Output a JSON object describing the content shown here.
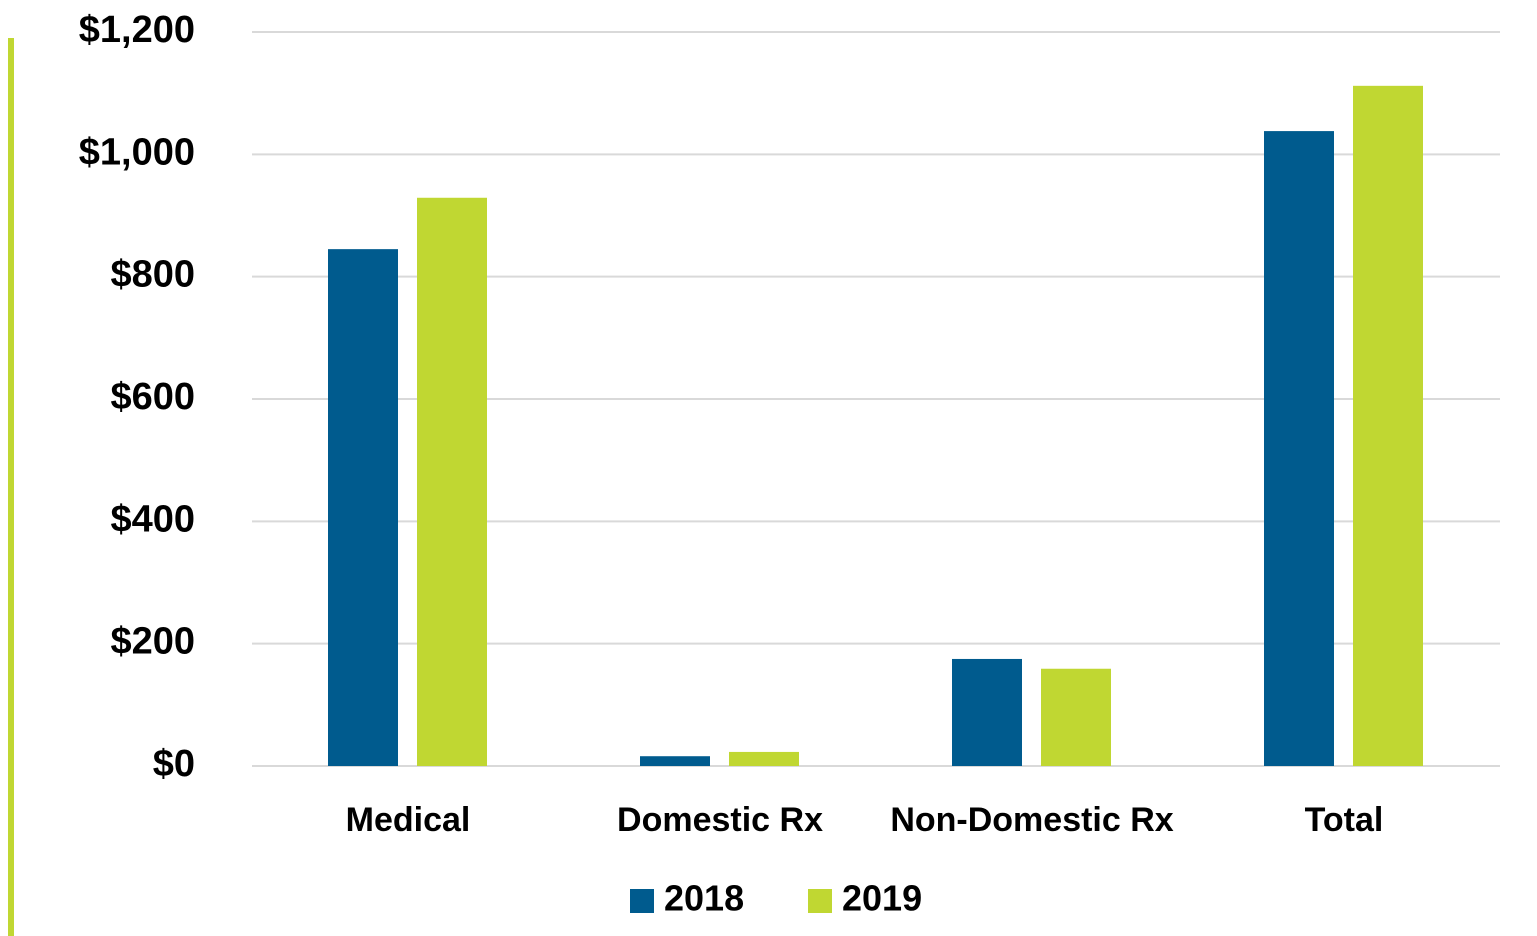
{
  "chart_data": {
    "type": "bar",
    "categories": [
      "Medical",
      "Domestic Rx",
      "Non-Domestic Rx",
      "Total"
    ],
    "series": [
      {
        "name": "2018",
        "color": "#005b8e",
        "values": [
          845,
          16,
          175,
          1038
        ]
      },
      {
        "name": "2019",
        "color": "#c0d732",
        "values": [
          929,
          23,
          159,
          1112
        ]
      }
    ],
    "ylim": [
      0,
      1200
    ],
    "yticks": [
      {
        "value": 0,
        "label": "$0"
      },
      {
        "value": 200,
        "label": "$200"
      },
      {
        "value": 400,
        "label": "$400"
      },
      {
        "value": 600,
        "label": "$600"
      },
      {
        "value": 800,
        "label": "$800"
      },
      {
        "value": 1000,
        "label": "$1,000"
      },
      {
        "value": 1200,
        "label": "$1,200"
      }
    ],
    "grid": true,
    "legend": "bottom"
  }
}
